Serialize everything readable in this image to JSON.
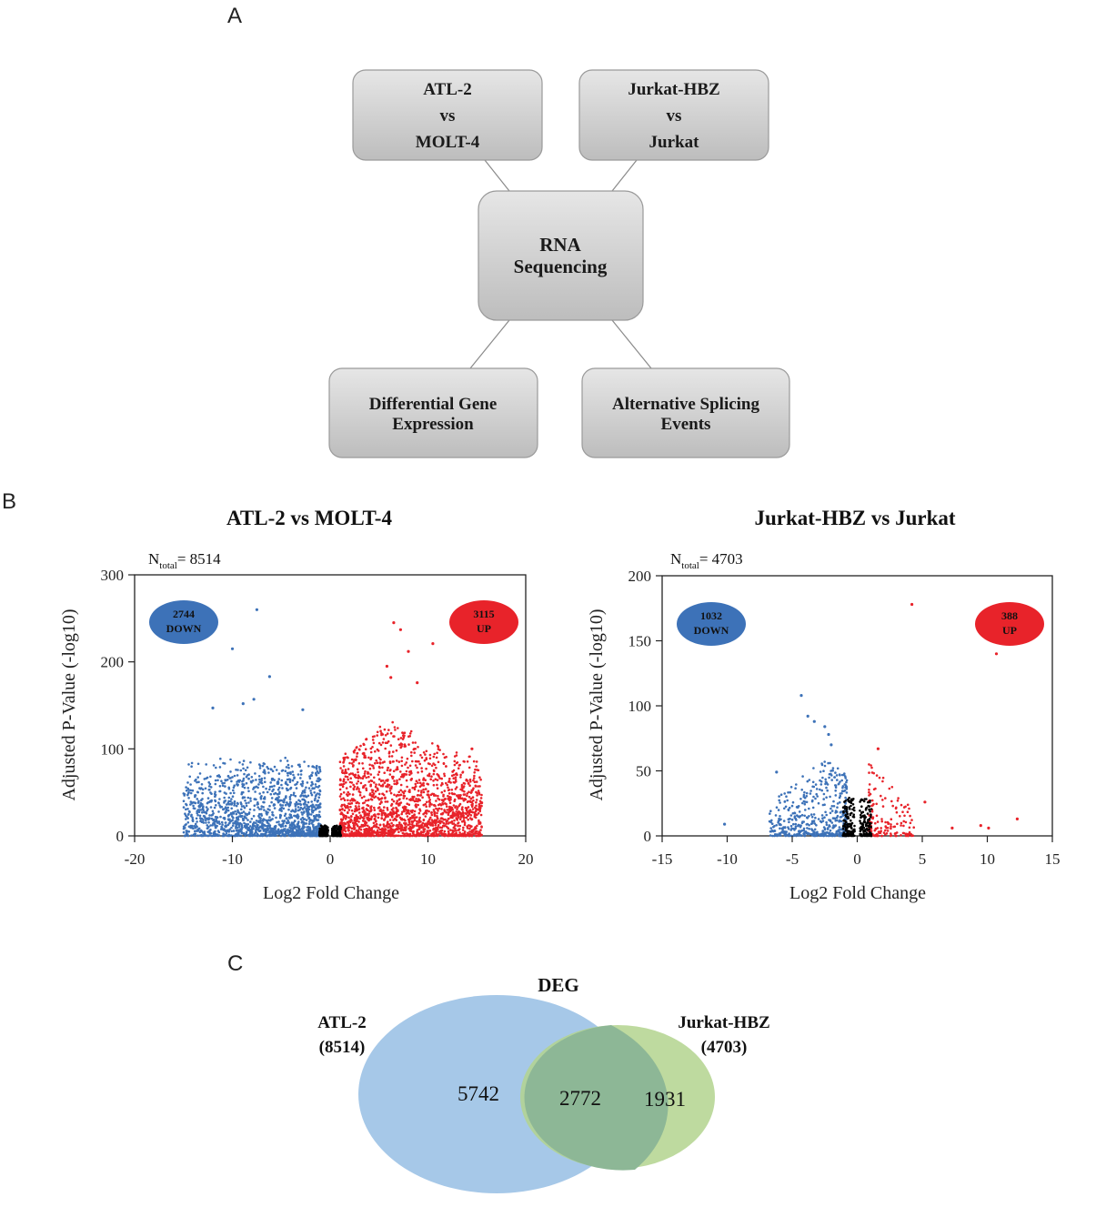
{
  "panels": {
    "a": "A",
    "b": "B",
    "c": "C"
  },
  "flowchart": {
    "top_left": [
      "ATL-2",
      "vs",
      "MOLT-4"
    ],
    "top_right": [
      "Jurkat-HBZ",
      "vs",
      "Jurkat"
    ],
    "center": [
      "RNA",
      "Sequencing"
    ],
    "bottom_left": [
      "Differential Gene",
      "Expression"
    ],
    "bottom_right": [
      "Alternative Splicing",
      "Events"
    ],
    "colors": {
      "box_top": "#e6e6e6",
      "box_bottom": "#bdbdbd",
      "border": "#9a9a9a",
      "line": "#8a8a8a"
    }
  },
  "chart_data": [
    {
      "type": "scatter",
      "title": "ATL-2 vs MOLT-4",
      "xlabel": "Log2 Fold Change",
      "ylabel": "Adjusted P-Value (-log10)",
      "xlim": [
        -20,
        20
      ],
      "ylim": [
        0,
        300
      ],
      "xticks": [
        -20,
        -10,
        0,
        10,
        20
      ],
      "yticks": [
        0,
        100,
        200,
        300
      ],
      "n_label": "N",
      "n_sub": "total",
      "n_value": "= 8514",
      "down": {
        "count": "2744",
        "label": "DOWN",
        "color": "#3d72b8"
      },
      "up": {
        "count": "3115",
        "label": "UP",
        "color": "#e8232a"
      },
      "nonsig_color": "#000000",
      "highlight_points": [
        {
          "x": -7.5,
          "y": 260,
          "group": "down"
        },
        {
          "x": -10,
          "y": 215,
          "group": "down"
        },
        {
          "x": -6.2,
          "y": 183,
          "group": "down"
        },
        {
          "x": -7.8,
          "y": 157,
          "group": "down"
        },
        {
          "x": -12,
          "y": 147,
          "group": "down"
        },
        {
          "x": -8.9,
          "y": 152,
          "group": "down"
        },
        {
          "x": -2.8,
          "y": 145,
          "group": "down"
        },
        {
          "x": 6.5,
          "y": 245,
          "group": "up"
        },
        {
          "x": 7.2,
          "y": 237,
          "group": "up"
        },
        {
          "x": 10.5,
          "y": 221,
          "group": "up"
        },
        {
          "x": 8,
          "y": 212,
          "group": "up"
        },
        {
          "x": 5.8,
          "y": 195,
          "group": "up"
        },
        {
          "x": 6.2,
          "y": 182,
          "group": "up"
        },
        {
          "x": 8.9,
          "y": 176,
          "group": "up"
        },
        {
          "x": 14.5,
          "y": 100,
          "group": "up"
        },
        {
          "x": 15.5,
          "y": 38,
          "group": "up"
        }
      ]
    },
    {
      "type": "scatter",
      "title": "Jurkat-HBZ vs Jurkat",
      "xlabel": "Log2 Fold Change",
      "ylabel": "Adjusted P-Value (-log10)",
      "xlim": [
        -15,
        15
      ],
      "ylim": [
        0,
        200
      ],
      "xticks": [
        -15,
        -10,
        -5,
        0,
        5,
        10,
        15
      ],
      "yticks": [
        0,
        50,
        100,
        150,
        200
      ],
      "n_label": "N",
      "n_sub": "total",
      "n_value": "= 4703",
      "down": {
        "count": "1032",
        "label": "DOWN",
        "color": "#3d72b8"
      },
      "up": {
        "count": "388",
        "label": "UP",
        "color": "#e8232a"
      },
      "nonsig_color": "#000000",
      "highlight_points": [
        {
          "x": -4.3,
          "y": 108,
          "group": "down"
        },
        {
          "x": -3.8,
          "y": 92,
          "group": "down"
        },
        {
          "x": -3.3,
          "y": 88,
          "group": "down"
        },
        {
          "x": -2.5,
          "y": 84,
          "group": "down"
        },
        {
          "x": -2.2,
          "y": 78,
          "group": "down"
        },
        {
          "x": -2.0,
          "y": 70,
          "group": "down"
        },
        {
          "x": -6.2,
          "y": 49,
          "group": "down"
        },
        {
          "x": -10.2,
          "y": 9,
          "group": "down"
        },
        {
          "x": 4.2,
          "y": 178,
          "group": "up"
        },
        {
          "x": 10.7,
          "y": 140,
          "group": "up"
        },
        {
          "x": 12.3,
          "y": 13,
          "group": "up"
        },
        {
          "x": 1.6,
          "y": 67,
          "group": "up"
        },
        {
          "x": 5.2,
          "y": 26,
          "group": "up"
        },
        {
          "x": 7.3,
          "y": 6,
          "group": "up"
        },
        {
          "x": 9.5,
          "y": 8,
          "group": "up"
        },
        {
          "x": 10.1,
          "y": 6,
          "group": "up"
        }
      ]
    }
  ],
  "venn": {
    "title": "DEG",
    "left_label": [
      "ATL-2",
      "(8514)"
    ],
    "right_label": [
      "Jurkat-HBZ",
      "(4703)"
    ],
    "left_only": "5742",
    "overlap": "2772",
    "right_only": "1931",
    "colors": {
      "left": "#a6c8e8",
      "right": "#b3d48e",
      "overlap": "#8db796",
      "overlap_text": "#d42a2a"
    }
  }
}
